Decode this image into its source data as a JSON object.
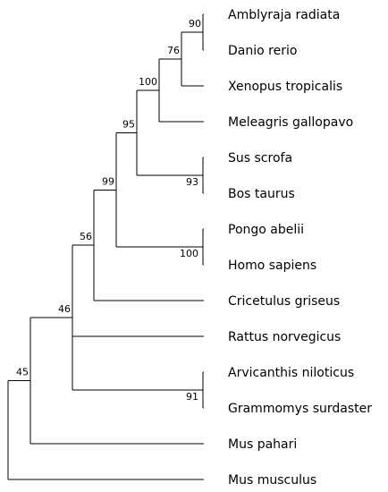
{
  "diagram": {
    "type": "phylogenetic-tree",
    "line_color": "#000000",
    "tree": {
      "id": "n45",
      "support": "45",
      "children": [
        {
          "id": "n46",
          "support": "46",
          "children": [
            {
              "id": "n56",
              "support": "56",
              "children": [
                {
                  "id": "n99",
                  "support": "99",
                  "children": [
                    {
                      "id": "n95",
                      "support": "95",
                      "children": [
                        {
                          "id": "n100a",
                          "support": "100",
                          "children": [
                            {
                              "id": "n76",
                              "support": "76",
                              "children": [
                                {
                                  "id": "n90",
                                  "support": "90",
                                  "children": [
                                    {
                                      "label": "Amblyraja radiata"
                                    },
                                    {
                                      "label": "Danio rerio"
                                    }
                                  ]
                                },
                                {
                                  "label": "Xenopus tropicalis"
                                }
                              ]
                            },
                            {
                              "label": "Meleagris gallopavo"
                            }
                          ]
                        },
                        {
                          "id": "n93",
                          "support": "93",
                          "children": [
                            {
                              "label": "Sus scrofa"
                            },
                            {
                              "label": "Bos taurus"
                            }
                          ]
                        }
                      ]
                    },
                    {
                      "id": "n100b",
                      "support": "100",
                      "children": [
                        {
                          "label": "Pongo abelii"
                        },
                        {
                          "label": "Homo sapiens"
                        }
                      ]
                    }
                  ]
                },
                {
                  "label": "Cricetulus griseus"
                }
              ]
            },
            {
              "label": "Rattus norvegicus"
            },
            {
              "id": "n91",
              "support": "91",
              "children": [
                {
                  "label": "Arvicanthis niloticus"
                },
                {
                  "label": "Grammomys surdaster"
                }
              ]
            }
          ]
        },
        {
          "label": "Mus pahari"
        }
      ]
    },
    "outgroup": {
      "label": "Mus musculus"
    }
  }
}
